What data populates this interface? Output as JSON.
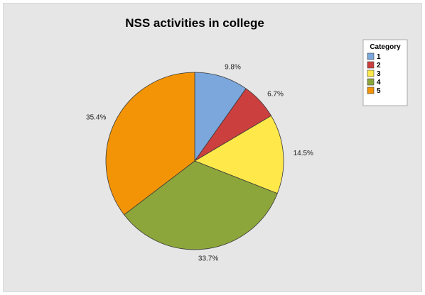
{
  "chart_data": {
    "type": "pie",
    "title": "NSS activities in college",
    "slices": [
      {
        "label": "1",
        "value": 9.8,
        "display": "9.8%",
        "color": "#7ba7dc"
      },
      {
        "label": "2",
        "value": 6.7,
        "display": "6.7%",
        "color": "#cc3f3f"
      },
      {
        "label": "3",
        "value": 14.5,
        "display": "14.5%",
        "color": "#ffe84a"
      },
      {
        "label": "4",
        "value": 33.7,
        "display": "33.7%",
        "color": "#8da63b"
      },
      {
        "label": "5",
        "value": 35.4,
        "display": "35.4%",
        "color": "#f39406"
      }
    ],
    "legend_title": "Category",
    "legend_position": "top-right",
    "start_angle": "12 o'clock",
    "direction": "clockwise"
  }
}
